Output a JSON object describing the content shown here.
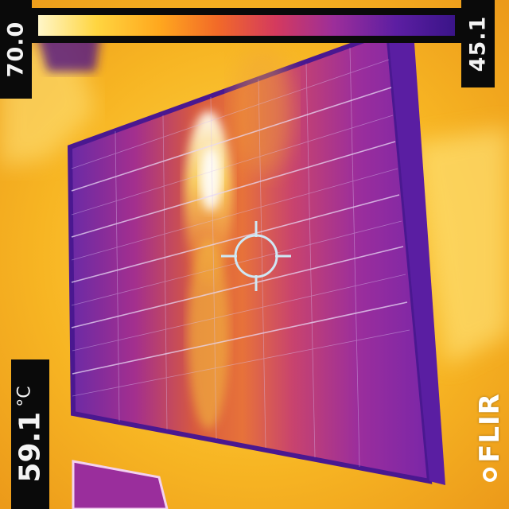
{
  "scale": {
    "max_label": "70.0",
    "min_label": "45.1",
    "palette": [
      "#fff6c8",
      "#ffd540",
      "#ffa81e",
      "#f26a28",
      "#d43a5e",
      "#9c2e9a",
      "#5c1ea2",
      "#3a1488"
    ]
  },
  "spot": {
    "value": "59.1",
    "unit": "°C"
  },
  "brand": {
    "name": "FLIR",
    "icon": "flir-logo-icon"
  },
  "colors": {
    "background_hot": "#f0b21c",
    "panel_cool": "#9a2a9a",
    "crosshair": "#cfe8f4"
  }
}
